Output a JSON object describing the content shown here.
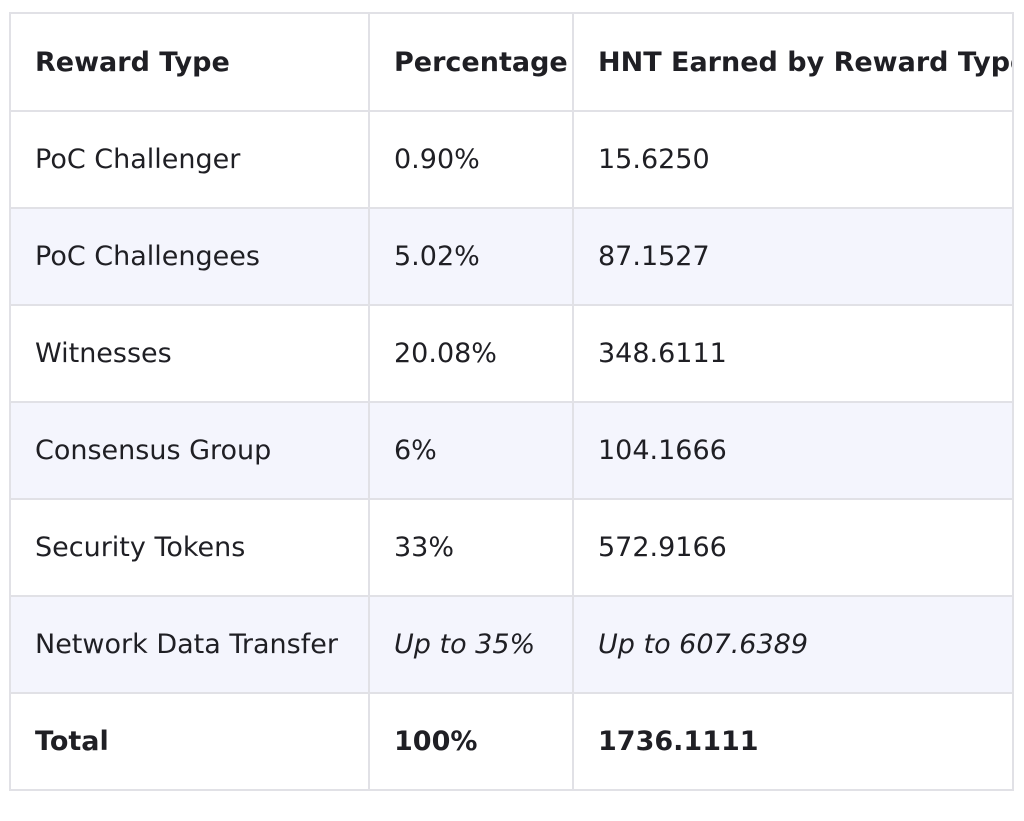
{
  "table": {
    "headers": [
      "Reward Type",
      "Percentage",
      "HNT Earned by Reward Type"
    ],
    "rows": [
      [
        "PoC Challenger",
        "0.90%",
        "15.6250"
      ],
      [
        "PoC Challengees",
        "5.02%",
        "87.1527"
      ],
      [
        "Witnesses",
        "20.08%",
        "348.6111"
      ],
      [
        "Consensus Group",
        "6%",
        "104.1666"
      ],
      [
        "Security Tokens",
        "33%",
        "572.9166"
      ],
      [
        "Network Data Transfer",
        "Up to 35%",
        "Up to 607.6389"
      ],
      [
        "Total",
        "100%",
        "1736.1111"
      ]
    ]
  },
  "colors": {
    "border": "#e1e1e6",
    "stripe": "#f4f5fd",
    "text": "#1f1f24"
  }
}
